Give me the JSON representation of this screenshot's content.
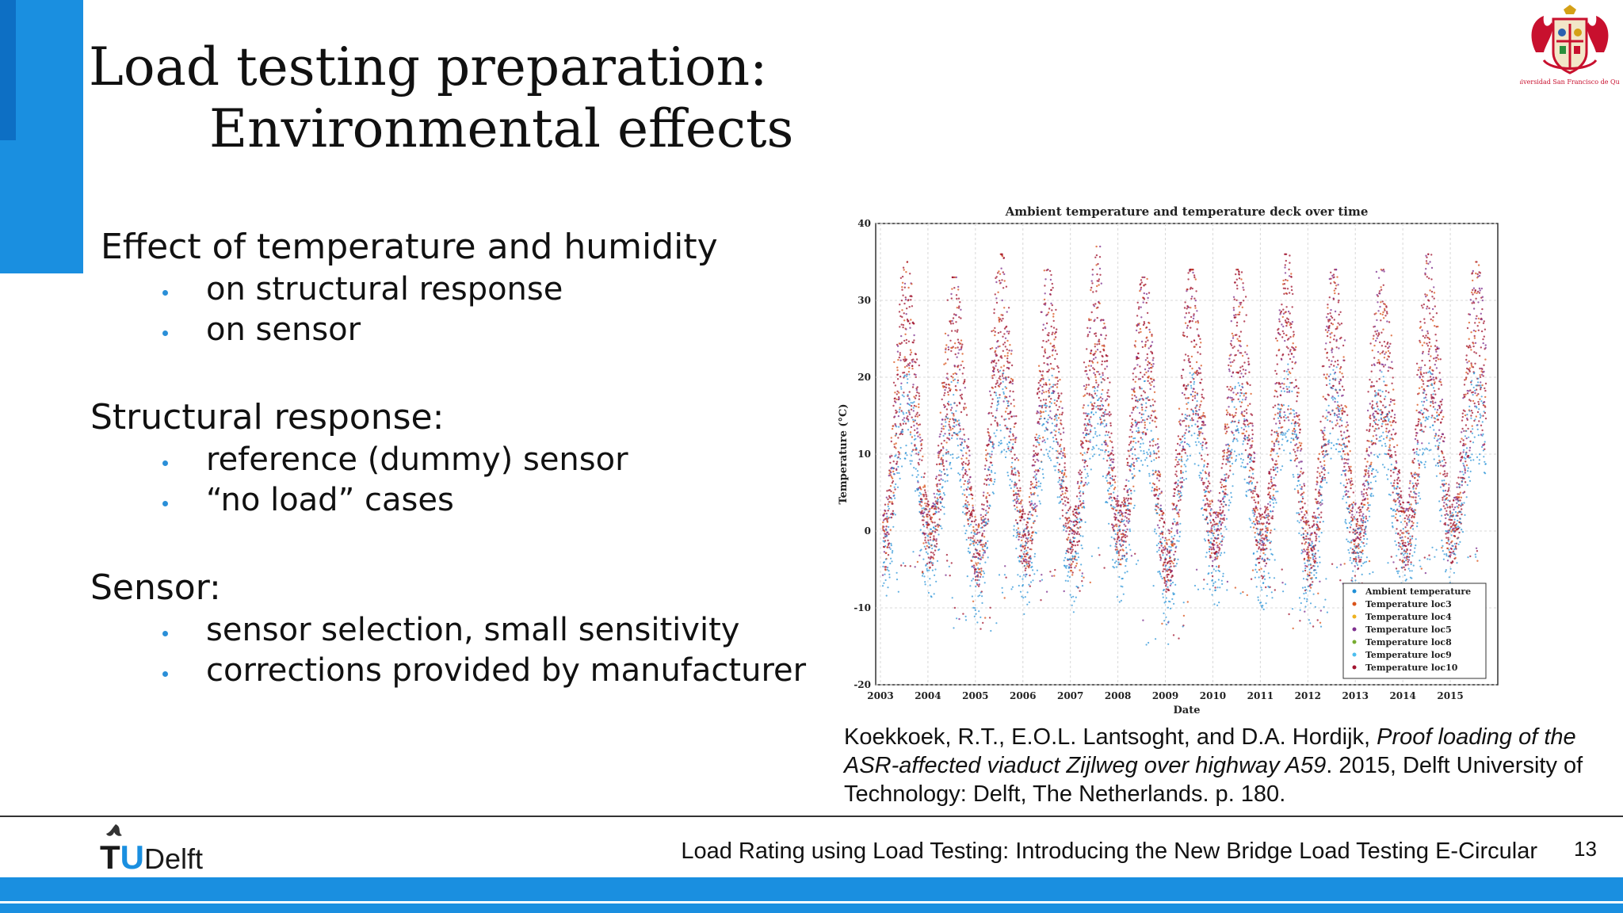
{
  "title": {
    "line1": "Load testing preparation:",
    "line2": "Environmental effects"
  },
  "university_logo": {
    "caption": "Universidad San Francisco de Quito"
  },
  "sections": [
    {
      "heading": "Effect of temperature and humidity",
      "bullets": [
        "on structural response",
        "on sensor"
      ]
    },
    {
      "heading": "Structural response:",
      "bullets": [
        "reference (dummy) sensor",
        "“no load” cases"
      ]
    },
    {
      "heading": "Sensor:",
      "bullets": [
        "sensor selection, small sensitivity",
        "corrections provided by manufacturer"
      ]
    }
  ],
  "chart_data": {
    "type": "scatter",
    "title": "Ambient temperature and temperature deck over time",
    "xlabel": "Date",
    "ylabel": "Temperature (°C)",
    "x_ticks": [
      "2003",
      "2004",
      "2005",
      "2006",
      "2007",
      "2008",
      "2009",
      "2010",
      "2011",
      "2012",
      "2013",
      "2014",
      "2015"
    ],
    "y_ticks": [
      40,
      30,
      20,
      10,
      0,
      -10,
      -20
    ],
    "ylim": [
      -20,
      40
    ],
    "xlim": [
      2002.9,
      2016.0
    ],
    "grid": true,
    "legend_position": "bottom-right",
    "legend": [
      "Ambient temperature",
      "Temperature loc3",
      "Temperature loc4",
      "Temperature loc5",
      "Temperature loc8",
      "Temperature loc9",
      "Temperature loc10"
    ],
    "series_colors": [
      "#1f8fd6",
      "#d95319",
      "#edb120",
      "#7e2f8e",
      "#77ac30",
      "#4dbeee",
      "#a2142f"
    ],
    "yearly_envelope": {
      "years": [
        2003,
        2004,
        2005,
        2006,
        2007,
        2008,
        2009,
        2010,
        2011,
        2012,
        2013,
        2014,
        2015
      ],
      "deck_summer_peak": [
        35,
        33,
        36,
        34,
        37,
        33,
        34,
        34,
        36,
        34,
        34,
        36,
        35
      ],
      "ambient_summer_peak": [
        28,
        27,
        29,
        28,
        29,
        27,
        28,
        27,
        29,
        29,
        27,
        28,
        28
      ],
      "winter_low": [
        -8,
        -6,
        -13,
        -9,
        -8,
        -5,
        -15,
        -8,
        -9,
        -13,
        -7,
        -6,
        -4
      ]
    }
  },
  "citation": {
    "authors": "Koekkoek, R.T., E.O.L. Lantsoght, and D.A. Hordijk, ",
    "title_italic": "Proof loading of the ASR-affected viaduct Zijlweg over highway A59",
    "rest": ". 2015, Delft University of Technology: Delft, The Netherlands. p. 180."
  },
  "footer": {
    "logo_text": "TUDelft",
    "presentation_title": "Load Rating using Load Testing: Introducing the New Bridge Load Testing E-Circular",
    "page_number": "13"
  },
  "colors": {
    "accent": "#1a8fe0",
    "bullet": "#2a8fd8",
    "deck_series": "#a2142f",
    "ambient_series": "#1f8fd6"
  }
}
